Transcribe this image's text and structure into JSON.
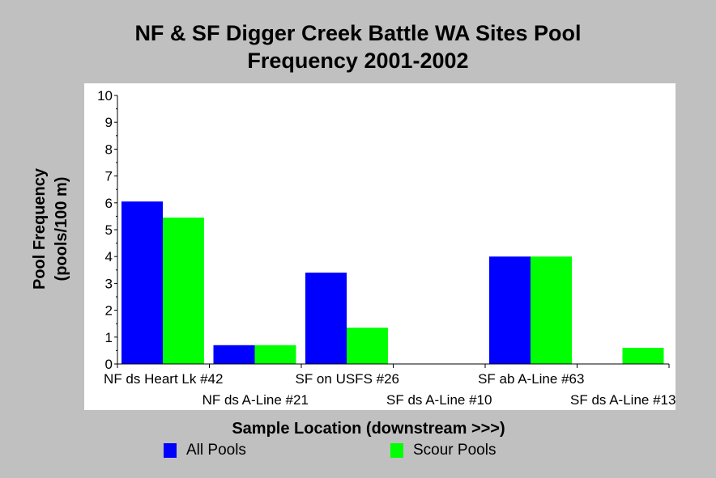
{
  "chart_data": {
    "type": "bar",
    "title_line1": "NF & SF Digger Creek Battle WA Sites Pool",
    "title_line2": "Frequency 2001-2002",
    "ylabel_line1": "Pool Frequency",
    "ylabel_line2": "(pools/100 m)",
    "xlabel": "Sample Location (downstream >>>)",
    "ylim": [
      0,
      10
    ],
    "yticks": [
      "0",
      "1",
      "2",
      "3",
      "4",
      "5",
      "6",
      "7",
      "8",
      "9",
      "10"
    ],
    "categories": [
      "NF ds Heart Lk #42",
      "NF ds A-Line #21",
      "SF on USFS #26",
      "SF ds A-Line #10",
      "SF ab A-Line #63",
      "SF ds A-Line #13"
    ],
    "series": [
      {
        "name": "All Pools",
        "color": "#0000ff",
        "values": [
          6.05,
          0.7,
          3.4,
          0,
          4.0,
          0
        ]
      },
      {
        "name": "Scour Pools",
        "color": "#00ff00",
        "values": [
          5.45,
          0.7,
          1.35,
          0,
          4.0,
          0.6
        ]
      }
    ],
    "grid": false,
    "legend_position": "bottom"
  }
}
